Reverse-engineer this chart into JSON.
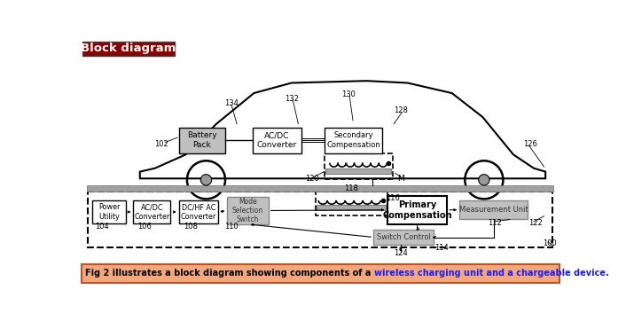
{
  "title_text": "Block diagram",
  "title_bg": "#8B0000",
  "title_fg": "#FFFFFF",
  "caption_text_black": "Fig 2 illustrates a block diagram showing components of a ",
  "caption_text_blue": "wireless charging unit and a chargeable device.",
  "caption_bg": "#F2A87A",
  "caption_border": "#C0522A",
  "caption_fg_black": "#000000",
  "caption_fg_blue": "#1a1aff",
  "bg_color": "#FFFFFF",
  "gray_box_bg": "#C0C0C0",
  "gray_box_edge": "#888888",
  "white_box_bg": "#FFFFFF",
  "black_edge": "#000000",
  "ground_bar_color": "#A0A0A0",
  "labels": {
    "battery_pack": "Battery\nPack",
    "acdc_conv_top": "AC/DC\nConverter",
    "sec_comp": "Secondary\nCompensation",
    "power_util": "Power\nUtility",
    "acdc_conv_bot": "AC/DC\nConverter",
    "dchfac_conv": "DC/HF AC\nConverter",
    "mode_sel": "Mode\nSelection\nSwitch",
    "prim_comp": "Primary\nCompensation",
    "meas_unit": "Measurement Unit",
    "switch_ctrl": "Switch Control"
  }
}
